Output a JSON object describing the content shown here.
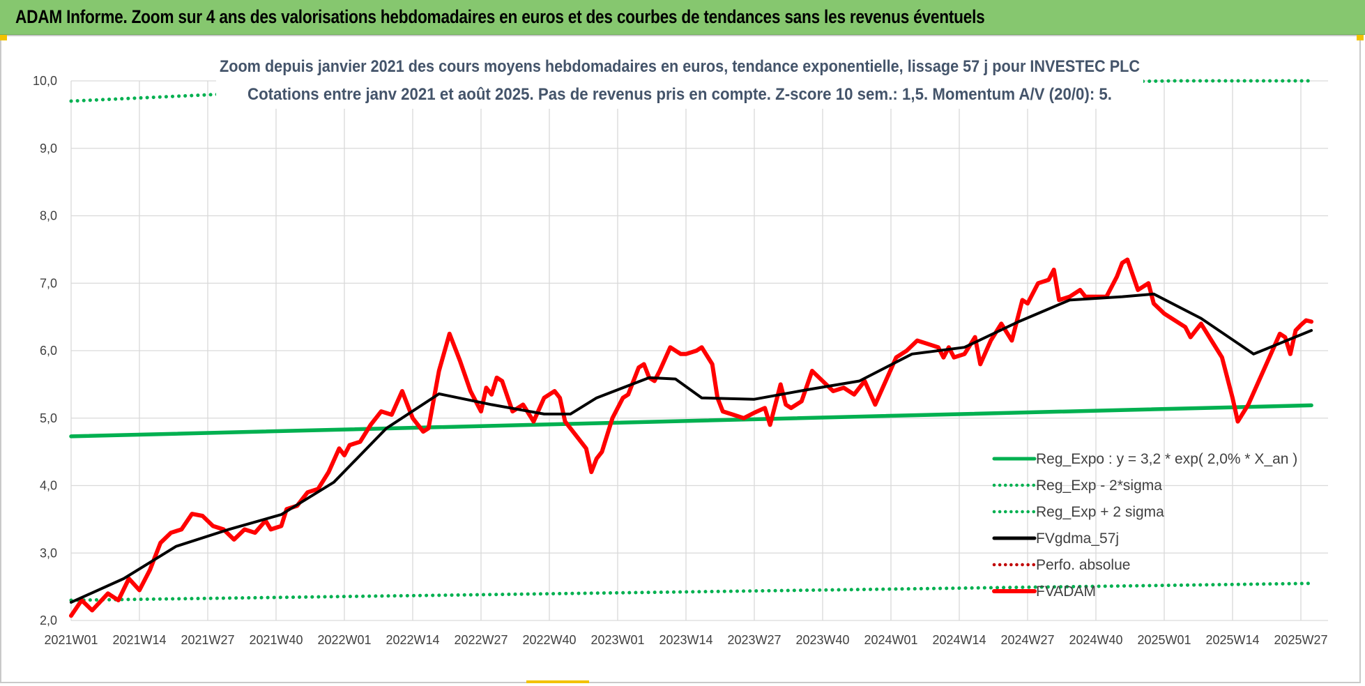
{
  "banner_title": "ADAM Informe. Zoom sur 4 ans des valorisations hebdomadaires en euros et des courbes de tendances sans les revenus éventuels",
  "colors": {
    "banner": "#86c76f",
    "trend": "#00b050",
    "smooth": "#000000",
    "price": "#ff0000",
    "perf": "#c00000"
  },
  "chart_data": {
    "type": "line",
    "title": "Zoom depuis janvier 2021 des cours moyens hebdomadaires en euros, tendance exponentielle, lissage 57 j pour INVESTEC PLC",
    "subtitle": "Cotations entre janv 2021 et août 2025. Pas de revenus pris en compte. Z-score 10 sem.: 1,5. Momentum A/V (20/0): 5.",
    "ylim": [
      2.0,
      10.0
    ],
    "y_ticks": [
      "2,0",
      "3,0",
      "4,0",
      "5,0",
      "6,0",
      "7,0",
      "8,0",
      "9,0",
      "10,0"
    ],
    "x_ticks": [
      "2021W01",
      "2021W14",
      "2021W27",
      "2021W40",
      "2022W01",
      "2022W14",
      "2022W27",
      "2022W40",
      "2023W01",
      "2023W14",
      "2023W27",
      "2023W40",
      "2024W01",
      "2024W14",
      "2024W27",
      "2024W40",
      "2025W01",
      "2025W14",
      "2025W27"
    ],
    "grid": true,
    "legend_position": "bottom-right",
    "series": [
      {
        "name": "Reg_Expo : y = 3,2 * exp( 2,0% *  X_an )",
        "style": "solid",
        "color": "#00b050",
        "points": [
          [
            0,
            4.73
          ],
          [
            236,
            5.19
          ]
        ]
      },
      {
        "name": "Reg_Exp - 2*sigma",
        "style": "dotted",
        "color": "#00b050",
        "points": [
          [
            0,
            2.3
          ],
          [
            236,
            2.55
          ]
        ]
      },
      {
        "name": "Reg_Exp + 2 sigma",
        "style": "dotted",
        "color": "#00b050",
        "points": [
          [
            0,
            9.7
          ],
          [
            28,
            9.8
          ],
          [
            210,
            10.0
          ],
          [
            236,
            10.0
          ]
        ]
      },
      {
        "name": "FVgdma_57j",
        "style": "solid",
        "color": "#000000",
        "points": [
          [
            0,
            2.27
          ],
          [
            10,
            2.62
          ],
          [
            20,
            3.1
          ],
          [
            30,
            3.35
          ],
          [
            40,
            3.57
          ],
          [
            50,
            4.05
          ],
          [
            60,
            4.85
          ],
          [
            70,
            5.36
          ],
          [
            80,
            5.2
          ],
          [
            90,
            5.06
          ],
          [
            95,
            5.06
          ],
          [
            100,
            5.3
          ],
          [
            110,
            5.6
          ],
          [
            115,
            5.58
          ],
          [
            120,
            5.3
          ],
          [
            130,
            5.28
          ],
          [
            140,
            5.42
          ],
          [
            150,
            5.55
          ],
          [
            160,
            5.95
          ],
          [
            170,
            6.05
          ],
          [
            180,
            6.42
          ],
          [
            190,
            6.75
          ],
          [
            200,
            6.8
          ],
          [
            206,
            6.84
          ],
          [
            215,
            6.48
          ],
          [
            225,
            5.95
          ],
          [
            236,
            6.3
          ]
        ]
      },
      {
        "name": "Perfo. absolue",
        "style": "dotted",
        "color": "#c00000",
        "points": []
      },
      {
        "name": "FVADAM",
        "style": "solid",
        "color": "#ff0000",
        "points": [
          [
            0,
            2.07
          ],
          [
            2,
            2.3
          ],
          [
            4,
            2.15
          ],
          [
            7,
            2.4
          ],
          [
            9,
            2.3
          ],
          [
            11,
            2.62
          ],
          [
            13,
            2.45
          ],
          [
            15,
            2.75
          ],
          [
            17,
            3.15
          ],
          [
            19,
            3.3
          ],
          [
            21,
            3.35
          ],
          [
            23,
            3.58
          ],
          [
            25,
            3.55
          ],
          [
            27,
            3.4
          ],
          [
            29,
            3.35
          ],
          [
            31,
            3.2
          ],
          [
            33,
            3.35
          ],
          [
            35,
            3.3
          ],
          [
            37,
            3.48
          ],
          [
            38,
            3.35
          ],
          [
            40,
            3.4
          ],
          [
            41,
            3.65
          ],
          [
            43,
            3.7
          ],
          [
            45,
            3.9
          ],
          [
            47,
            3.95
          ],
          [
            49,
            4.2
          ],
          [
            51,
            4.55
          ],
          [
            52,
            4.45
          ],
          [
            53,
            4.6
          ],
          [
            55,
            4.65
          ],
          [
            57,
            4.9
          ],
          [
            59,
            5.1
          ],
          [
            61,
            5.05
          ],
          [
            63,
            5.4
          ],
          [
            65,
            5.0
          ],
          [
            67,
            4.8
          ],
          [
            68,
            4.85
          ],
          [
            70,
            5.7
          ],
          [
            72,
            6.25
          ],
          [
            74,
            5.85
          ],
          [
            76,
            5.4
          ],
          [
            78,
            5.1
          ],
          [
            79,
            5.45
          ],
          [
            80,
            5.35
          ],
          [
            81,
            5.6
          ],
          [
            82,
            5.55
          ],
          [
            84,
            5.1
          ],
          [
            86,
            5.2
          ],
          [
            88,
            4.95
          ],
          [
            90,
            5.3
          ],
          [
            92,
            5.4
          ],
          [
            93,
            5.3
          ],
          [
            94,
            4.95
          ],
          [
            96,
            4.75
          ],
          [
            98,
            4.55
          ],
          [
            99,
            4.2
          ],
          [
            100,
            4.4
          ],
          [
            101,
            4.5
          ],
          [
            103,
            5.0
          ],
          [
            105,
            5.3
          ],
          [
            106,
            5.35
          ],
          [
            108,
            5.75
          ],
          [
            109,
            5.8
          ],
          [
            110,
            5.6
          ],
          [
            111,
            5.55
          ],
          [
            112,
            5.7
          ],
          [
            114,
            6.05
          ],
          [
            115,
            6.0
          ],
          [
            116,
            5.95
          ],
          [
            117,
            5.95
          ],
          [
            119,
            6.0
          ],
          [
            120,
            6.05
          ],
          [
            122,
            5.8
          ],
          [
            123,
            5.3
          ],
          [
            124,
            5.1
          ],
          [
            126,
            5.05
          ],
          [
            128,
            5.0
          ],
          [
            130,
            5.08
          ],
          [
            132,
            5.15
          ],
          [
            133,
            4.9
          ],
          [
            135,
            5.5
          ],
          [
            136,
            5.2
          ],
          [
            137,
            5.15
          ],
          [
            139,
            5.25
          ],
          [
            141,
            5.7
          ],
          [
            143,
            5.55
          ],
          [
            145,
            5.4
          ],
          [
            147,
            5.45
          ],
          [
            149,
            5.35
          ],
          [
            151,
            5.55
          ],
          [
            153,
            5.2
          ],
          [
            155,
            5.55
          ],
          [
            157,
            5.9
          ],
          [
            159,
            6.0
          ],
          [
            161,
            6.15
          ],
          [
            163,
            6.1
          ],
          [
            165,
            6.05
          ],
          [
            166,
            5.9
          ],
          [
            167,
            6.05
          ],
          [
            168,
            5.9
          ],
          [
            170,
            5.95
          ],
          [
            172,
            6.2
          ],
          [
            173,
            5.8
          ],
          [
            175,
            6.15
          ],
          [
            177,
            6.4
          ],
          [
            179,
            6.15
          ],
          [
            181,
            6.75
          ],
          [
            182,
            6.7
          ],
          [
            184,
            7.0
          ],
          [
            186,
            7.05
          ],
          [
            187,
            7.2
          ],
          [
            188,
            6.75
          ],
          [
            190,
            6.8
          ],
          [
            192,
            6.9
          ],
          [
            193,
            6.8
          ],
          [
            195,
            6.8
          ],
          [
            197,
            6.8
          ],
          [
            199,
            7.1
          ],
          [
            200,
            7.3
          ],
          [
            201,
            7.35
          ],
          [
            203,
            6.9
          ],
          [
            205,
            7.0
          ],
          [
            206,
            6.7
          ],
          [
            208,
            6.55
          ],
          [
            210,
            6.45
          ],
          [
            212,
            6.35
          ],
          [
            213,
            6.2
          ],
          [
            215,
            6.4
          ],
          [
            217,
            6.15
          ],
          [
            219,
            5.9
          ],
          [
            221,
            5.3
          ],
          [
            222,
            4.95
          ],
          [
            224,
            5.2
          ],
          [
            226,
            5.55
          ],
          [
            228,
            5.9
          ],
          [
            230,
            6.25
          ],
          [
            231,
            6.2
          ],
          [
            232,
            5.95
          ],
          [
            233,
            6.3
          ],
          [
            234,
            6.38
          ],
          [
            235,
            6.45
          ],
          [
            236,
            6.43
          ]
        ]
      }
    ]
  }
}
